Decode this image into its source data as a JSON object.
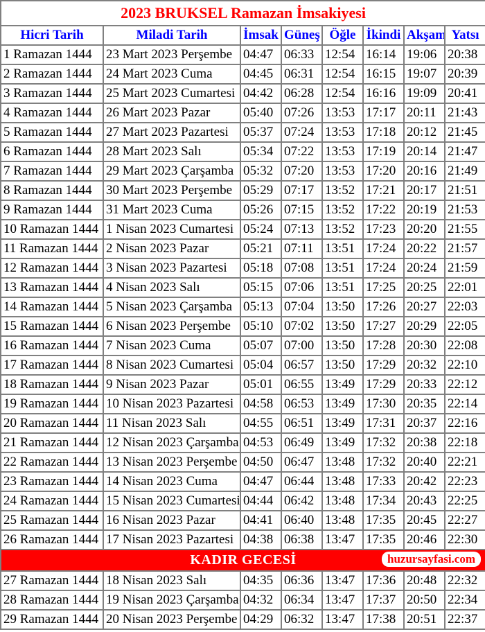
{
  "title": "2023 BRUKSEL Ramazan İmsakiyesi",
  "columns": [
    "Hicri Tarih",
    "Miladi Tarih",
    "İmsak",
    "Güneş",
    "Öğle",
    "İkindi",
    "Akşam",
    "Yatsı"
  ],
  "kadir": {
    "label": "KADIR GECESİ",
    "site": "huzursayfasi.com",
    "after_index": 25
  },
  "colors": {
    "title": "#ff0000",
    "header": "#0000ff",
    "border": "#808080",
    "kadir_bg": "#ff0000",
    "kadir_text": "#ffffff",
    "badge_bg": "#ffffff",
    "badge_text": "#ff0000"
  },
  "rows": [
    {
      "h": "1 Ramazan 1444",
      "m": "23 Mart 2023 Perşembe",
      "t": [
        "04:47",
        "06:33",
        "12:54",
        "16:14",
        "19:06",
        "20:38"
      ]
    },
    {
      "h": "2 Ramazan 1444",
      "m": "24 Mart 2023 Cuma",
      "t": [
        "04:45",
        "06:31",
        "12:54",
        "16:15",
        "19:07",
        "20:39"
      ]
    },
    {
      "h": "3 Ramazan 1444",
      "m": "25 Mart 2023 Cumartesi",
      "t": [
        "04:42",
        "06:28",
        "12:54",
        "16:16",
        "19:09",
        "20:41"
      ]
    },
    {
      "h": "4 Ramazan 1444",
      "m": "26 Mart 2023 Pazar",
      "t": [
        "05:40",
        "07:26",
        "13:53",
        "17:17",
        "20:11",
        "21:43"
      ]
    },
    {
      "h": "5 Ramazan 1444",
      "m": "27 Mart 2023 Pazartesi",
      "t": [
        "05:37",
        "07:24",
        "13:53",
        "17:18",
        "20:12",
        "21:45"
      ]
    },
    {
      "h": "6 Ramazan 1444",
      "m": "28 Mart 2023 Salı",
      "t": [
        "05:34",
        "07:22",
        "13:53",
        "17:19",
        "20:14",
        "21:47"
      ]
    },
    {
      "h": "7 Ramazan 1444",
      "m": "29 Mart 2023 Çarşamba",
      "t": [
        "05:32",
        "07:20",
        "13:53",
        "17:20",
        "20:16",
        "21:49"
      ]
    },
    {
      "h": "8 Ramazan 1444",
      "m": "30 Mart 2023 Perşembe",
      "t": [
        "05:29",
        "07:17",
        "13:52",
        "17:21",
        "20:17",
        "21:51"
      ]
    },
    {
      "h": "9 Ramazan 1444",
      "m": "31 Mart 2023 Cuma",
      "t": [
        "05:26",
        "07:15",
        "13:52",
        "17:22",
        "20:19",
        "21:53"
      ]
    },
    {
      "h": "10 Ramazan 1444",
      "m": "1 Nisan 2023 Cumartesi",
      "t": [
        "05:24",
        "07:13",
        "13:52",
        "17:23",
        "20:20",
        "21:55"
      ]
    },
    {
      "h": "11 Ramazan 1444",
      "m": "2 Nisan 2023 Pazar",
      "t": [
        "05:21",
        "07:11",
        "13:51",
        "17:24",
        "20:22",
        "21:57"
      ]
    },
    {
      "h": "12 Ramazan 1444",
      "m": "3 Nisan 2023 Pazartesi",
      "t": [
        "05:18",
        "07:08",
        "13:51",
        "17:24",
        "20:24",
        "21:59"
      ]
    },
    {
      "h": "13 Ramazan 1444",
      "m": "4 Nisan 2023 Salı",
      "t": [
        "05:15",
        "07:06",
        "13:51",
        "17:25",
        "20:25",
        "22:01"
      ]
    },
    {
      "h": "14 Ramazan 1444",
      "m": "5 Nisan 2023 Çarşamba",
      "t": [
        "05:13",
        "07:04",
        "13:50",
        "17:26",
        "20:27",
        "22:03"
      ]
    },
    {
      "h": "15 Ramazan 1444",
      "m": "6 Nisan 2023 Perşembe",
      "t": [
        "05:10",
        "07:02",
        "13:50",
        "17:27",
        "20:29",
        "22:05"
      ]
    },
    {
      "h": "16 Ramazan 1444",
      "m": "7 Nisan 2023 Cuma",
      "t": [
        "05:07",
        "07:00",
        "13:50",
        "17:28",
        "20:30",
        "22:08"
      ]
    },
    {
      "h": "17 Ramazan 1444",
      "m": "8 Nisan 2023 Cumartesi",
      "t": [
        "05:04",
        "06:57",
        "13:50",
        "17:29",
        "20:32",
        "22:10"
      ]
    },
    {
      "h": "18 Ramazan 1444",
      "m": "9 Nisan 2023 Pazar",
      "t": [
        "05:01",
        "06:55",
        "13:49",
        "17:29",
        "20:33",
        "22:12"
      ]
    },
    {
      "h": "19 Ramazan 1444",
      "m": "10 Nisan 2023 Pazartesi",
      "t": [
        "04:58",
        "06:53",
        "13:49",
        "17:30",
        "20:35",
        "22:14"
      ]
    },
    {
      "h": "20 Ramazan 1444",
      "m": "11 Nisan 2023 Salı",
      "t": [
        "04:55",
        "06:51",
        "13:49",
        "17:31",
        "20:37",
        "22:16"
      ]
    },
    {
      "h": "21 Ramazan 1444",
      "m": "12 Nisan 2023 Çarşamba",
      "t": [
        "04:53",
        "06:49",
        "13:49",
        "17:32",
        "20:38",
        "22:18"
      ]
    },
    {
      "h": "22 Ramazan 1444",
      "m": "13 Nisan 2023 Perşembe",
      "t": [
        "04:50",
        "06:47",
        "13:48",
        "17:32",
        "20:40",
        "22:21"
      ]
    },
    {
      "h": "23 Ramazan 1444",
      "m": "14 Nisan 2023 Cuma",
      "t": [
        "04:47",
        "06:44",
        "13:48",
        "17:33",
        "20:42",
        "22:23"
      ]
    },
    {
      "h": "24 Ramazan 1444",
      "m": "15 Nisan 2023 Cumartesi",
      "t": [
        "04:44",
        "06:42",
        "13:48",
        "17:34",
        "20:43",
        "22:25"
      ]
    },
    {
      "h": "25 Ramazan 1444",
      "m": "16 Nisan 2023 Pazar",
      "t": [
        "04:41",
        "06:40",
        "13:48",
        "17:35",
        "20:45",
        "22:27"
      ]
    },
    {
      "h": "26 Ramazan 1444",
      "m": "17 Nisan 2023 Pazartesi",
      "t": [
        "04:38",
        "06:38",
        "13:47",
        "17:35",
        "20:46",
        "22:30"
      ]
    },
    {
      "h": "27 Ramazan 1444",
      "m": "18 Nisan 2023 Salı",
      "t": [
        "04:35",
        "06:36",
        "13:47",
        "17:36",
        "20:48",
        "22:32"
      ]
    },
    {
      "h": "28 Ramazan 1444",
      "m": "19 Nisan 2023 Çarşamba",
      "t": [
        "04:32",
        "06:34",
        "13:47",
        "17:37",
        "20:50",
        "22:34"
      ]
    },
    {
      "h": "29 Ramazan 1444",
      "m": "20 Nisan 2023 Perşembe",
      "t": [
        "04:29",
        "06:32",
        "13:47",
        "17:38",
        "20:51",
        "22:37"
      ]
    }
  ]
}
